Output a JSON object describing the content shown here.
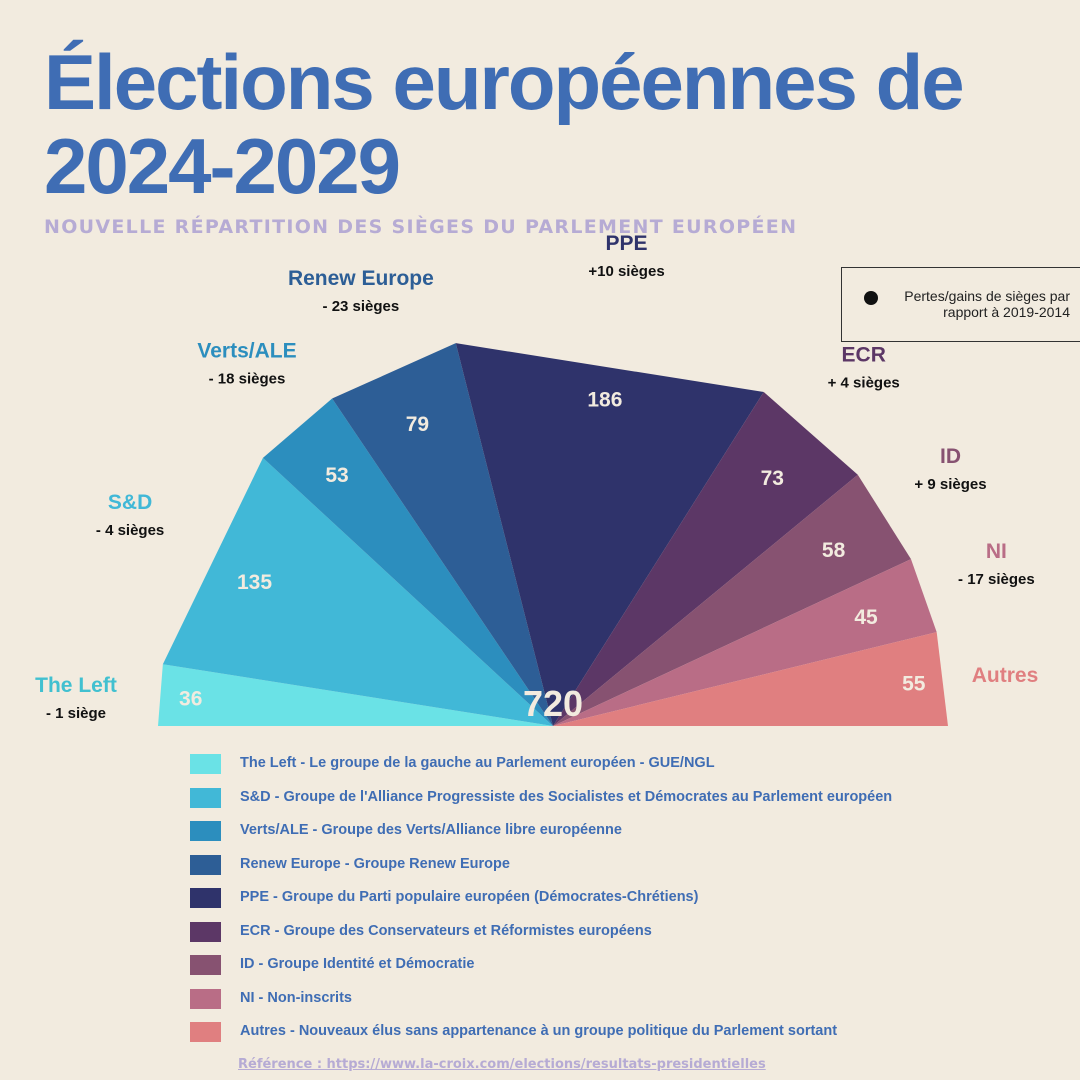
{
  "page": {
    "title_line1": "Élections européennes de",
    "title_line2": "2024-2029",
    "subtitle": "NOUVELLE RÉPARTITION DES SIÈGES DU PARLEMENT EUROPÉEN",
    "note": "Pertes/gains de sièges par rapport à 2019-2014",
    "reference": "Référence : https://www.la-croix.com/elections/resultats-presidentielles",
    "background": "#f2ebdf",
    "title_color": "#3f6db4",
    "subtitle_color": "#b6abd4"
  },
  "chart_data": {
    "type": "pie",
    "subtype": "semicircle-parliament",
    "title": "Élections européennes de 2024-2029",
    "subtitle": "NOUVELLE RÉPARTITION DES SIÈGES DU PARLEMENT EUROPÉEN",
    "total": 720,
    "total_label": "720",
    "categories": [
      "The Left",
      "S&D",
      "Verts/ALE",
      "Renew Europe",
      "PPE",
      "ECR",
      "ID",
      "NI",
      "Autres"
    ],
    "values": [
      36,
      135,
      53,
      79,
      186,
      73,
      58,
      45,
      55
    ],
    "changes": [
      "- 1 siège",
      "- 4 sièges",
      "- 18 sièges",
      "- 23 sièges",
      "+10 sièges",
      "+ 4 sièges",
      "+ 9 sièges",
      "- 17 sièges",
      ""
    ],
    "colors": [
      "#6ae2e6",
      "#41b8d7",
      "#2c8ebe",
      "#2d5e96",
      "#2f336b",
      "#5c3766",
      "#875271",
      "#b96d86",
      "#e07f80"
    ],
    "label_colors": [
      "#41c0d0",
      "#41b8d7",
      "#2c8ebe",
      "#2d5e96",
      "#2f336b",
      "#5c3766",
      "#875271",
      "#b96d86",
      "#e07f80"
    ],
    "legend": [
      "The Left - Le groupe de la gauche au Parlement européen - GUE/NGL",
      "S&D - Groupe de l'Alliance Progressiste des Socialistes et Démocrates au Parlement européen",
      "Verts/ALE - Groupe des Verts/Alliance libre européenne",
      "Renew Europe - Groupe Renew Europe",
      "PPE - Groupe du Parti populaire européen (Démocrates-Chrétiens)",
      "ECR - Groupe des Conservateurs et Réformistes européens",
      "ID - Groupe Identité et Démocratie",
      "NI - Non-inscrits",
      "Autres - Nouveaux élus sans appartenance à un groupe politique du Parlement sortant"
    ]
  }
}
